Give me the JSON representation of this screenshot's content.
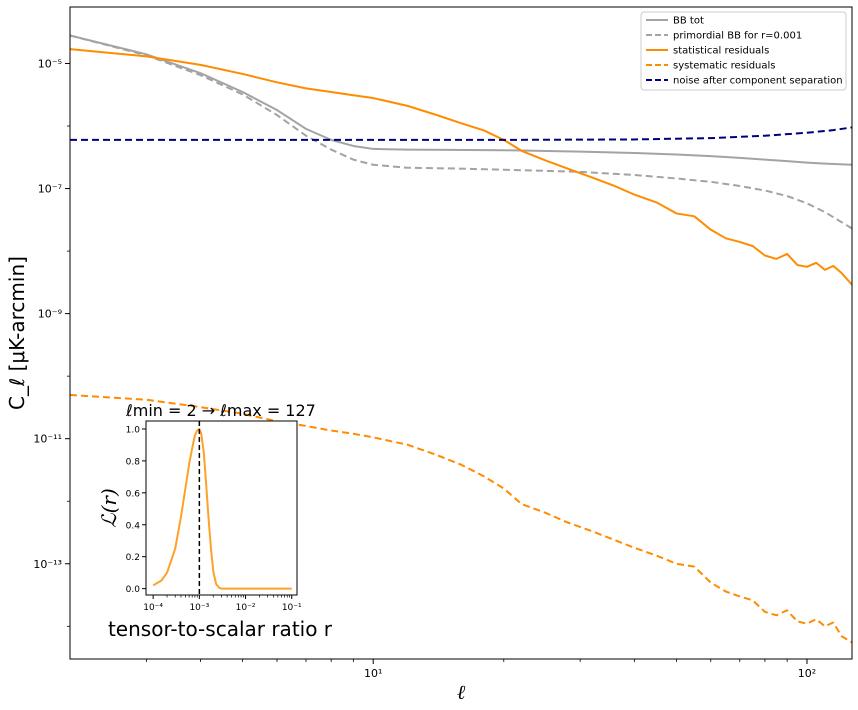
{
  "chart_data": [
    {
      "type": "line",
      "xlabel": "ℓ",
      "ylabel": "C_ℓ [μK-arcmin]",
      "x_scale": "log",
      "y_scale": "log",
      "xlim": [
        2,
        127
      ],
      "ylim": [
        3e-15,
        8e-05
      ],
      "x_ticks": [
        {
          "value": 10,
          "label": "10¹"
        },
        {
          "value": 100,
          "label": "10²"
        }
      ],
      "y_ticks": [
        {
          "value": 1e-05,
          "label": "10⁻⁵"
        },
        {
          "value": 1e-07,
          "label": "10⁻⁷"
        },
        {
          "value": 1e-09,
          "label": "10⁻⁹"
        },
        {
          "value": 1e-11,
          "label": "10⁻¹¹"
        },
        {
          "value": 1e-13,
          "label": "10⁻¹³"
        }
      ],
      "legend": "top-right",
      "grid": false,
      "series": [
        {
          "name": "BB tot",
          "color": "#a3a3a3",
          "dash": "solid",
          "points": [
            [
              2,
              2.8e-05
            ],
            [
              3,
              1.4e-05
            ],
            [
              4,
              7e-06
            ],
            [
              5,
              3.5e-06
            ],
            [
              6,
              1.8e-06
            ],
            [
              7,
              9e-07
            ],
            [
              8,
              6e-07
            ],
            [
              9,
              4.8e-07
            ],
            [
              10,
              4.3e-07
            ],
            [
              12,
              4.2e-07
            ],
            [
              15,
              4.15e-07
            ],
            [
              20,
              4.1e-07
            ],
            [
              30,
              3.9e-07
            ],
            [
              40,
              3.7e-07
            ],
            [
              50,
              3.5e-07
            ],
            [
              60,
              3.3e-07
            ],
            [
              70,
              3.1e-07
            ],
            [
              80,
              2.9e-07
            ],
            [
              90,
              2.75e-07
            ],
            [
              100,
              2.6e-07
            ],
            [
              110,
              2.5e-07
            ],
            [
              127,
              2.4e-07
            ]
          ]
        },
        {
          "name": "primordial BB for r=0.001",
          "color": "#a3a3a3",
          "dash": "dashed",
          "points": [
            [
              2,
              2.8e-05
            ],
            [
              3,
              1.35e-05
            ],
            [
              4,
              6.5e-06
            ],
            [
              5,
              3.2e-06
            ],
            [
              6,
              1.5e-06
            ],
            [
              7,
              7e-07
            ],
            [
              8,
              4.2e-07
            ],
            [
              9,
              2.9e-07
            ],
            [
              10,
              2.4e-07
            ],
            [
              12,
              2.15e-07
            ],
            [
              15,
              2.1e-07
            ],
            [
              20,
              2e-07
            ],
            [
              30,
              1.85e-07
            ],
            [
              40,
              1.65e-07
            ],
            [
              50,
              1.45e-07
            ],
            [
              60,
              1.28e-07
            ],
            [
              70,
              1.1e-07
            ],
            [
              80,
              9.3e-08
            ],
            [
              90,
              7.6e-08
            ],
            [
              100,
              5.8e-08
            ],
            [
              110,
              4.2e-08
            ],
            [
              127,
              2.3e-08
            ]
          ]
        },
        {
          "name": "statistical residuals",
          "color": "#ff8c00",
          "dash": "solid",
          "points": [
            [
              2,
              1.7e-05
            ],
            [
              3,
              1.3e-05
            ],
            [
              4,
              9.5e-06
            ],
            [
              5,
              6.8e-06
            ],
            [
              6,
              5e-06
            ],
            [
              7,
              4e-06
            ],
            [
              8,
              3.5e-06
            ],
            [
              9,
              3.1e-06
            ],
            [
              10,
              2.8e-06
            ],
            [
              12,
              2.1e-06
            ],
            [
              14,
              1.5e-06
            ],
            [
              16,
              1.1e-06
            ],
            [
              18,
              8.5e-07
            ],
            [
              20,
              6e-07
            ],
            [
              22,
              4e-07
            ],
            [
              25,
              2.8e-07
            ],
            [
              28,
              2.1e-07
            ],
            [
              32,
              1.5e-07
            ],
            [
              36,
              1.1e-07
            ],
            [
              40,
              8e-08
            ],
            [
              45,
              6e-08
            ],
            [
              50,
              4e-08
            ],
            [
              55,
              3.6e-08
            ],
            [
              60,
              2.2e-08
            ],
            [
              65,
              1.6e-08
            ],
            [
              70,
              1.4e-08
            ],
            [
              75,
              1.2e-08
            ],
            [
              80,
              8.5e-09
            ],
            [
              85,
              7.5e-09
            ],
            [
              90,
              9e-09
            ],
            [
              95,
              6e-09
            ],
            [
              100,
              5.6e-09
            ],
            [
              105,
              6.5e-09
            ],
            [
              110,
              5e-09
            ],
            [
              115,
              5.8e-09
            ],
            [
              120,
              4.5e-09
            ],
            [
              127,
              2.9e-09
            ]
          ]
        },
        {
          "name": "systematic residuals",
          "color": "#ff8c00",
          "dash": "dashed",
          "points": [
            [
              2,
              5e-11
            ],
            [
              3,
              4.2e-11
            ],
            [
              4,
              3.2e-11
            ],
            [
              5,
              2.5e-11
            ],
            [
              6,
              1.9e-11
            ],
            [
              7,
              1.6e-11
            ],
            [
              8,
              1.35e-11
            ],
            [
              9,
              1.2e-11
            ],
            [
              10,
              1.05e-11
            ],
            [
              12,
              8e-12
            ],
            [
              14,
              5.5e-12
            ],
            [
              16,
              3.8e-12
            ],
            [
              18,
              2.5e-12
            ],
            [
              20,
              1.6e-12
            ],
            [
              22,
              9e-13
            ],
            [
              25,
              6.5e-13
            ],
            [
              28,
              4.6e-13
            ],
            [
              32,
              3.3e-13
            ],
            [
              36,
              2.4e-13
            ],
            [
              40,
              1.8e-13
            ],
            [
              45,
              1.35e-13
            ],
            [
              50,
              1e-13
            ],
            [
              55,
              9e-14
            ],
            [
              60,
              5e-14
            ],
            [
              65,
              3.6e-14
            ],
            [
              70,
              3e-14
            ],
            [
              75,
              2.6e-14
            ],
            [
              80,
              1.7e-14
            ],
            [
              85,
              1.5e-14
            ],
            [
              90,
              1.8e-14
            ],
            [
              95,
              1.2e-14
            ],
            [
              100,
              1.1e-14
            ],
            [
              105,
              1.3e-14
            ],
            [
              110,
              1e-14
            ],
            [
              115,
              1.15e-14
            ],
            [
              120,
              7e-15
            ],
            [
              127,
              5.5e-15
            ]
          ]
        },
        {
          "name": "noise after component separation",
          "color": "#00007f",
          "dash": "dashed",
          "points": [
            [
              2,
              6e-07
            ],
            [
              10,
              6e-07
            ],
            [
              20,
              6e-07
            ],
            [
              40,
              6.1e-07
            ],
            [
              60,
              6.4e-07
            ],
            [
              80,
              7e-07
            ],
            [
              100,
              7.8e-07
            ],
            [
              115,
              8.6e-07
            ],
            [
              127,
              9.5e-07
            ]
          ]
        }
      ]
    },
    {
      "type": "line",
      "title": "ℓmin = 2 → ℓmax = 127",
      "xlabel": "tensor-to-scalar ratio r",
      "ylabel": "ℒ(r)",
      "x_scale": "log",
      "xlim": [
        7e-05,
        0.13
      ],
      "ylim": [
        -0.04,
        1.05
      ],
      "x_ticks": [
        {
          "value": 0.0001,
          "label": "10⁻⁴"
        },
        {
          "value": 0.001,
          "label": "10⁻³"
        },
        {
          "value": 0.01,
          "label": "10⁻²"
        },
        {
          "value": 0.1,
          "label": "10⁻¹"
        }
      ],
      "y_ticks": [
        0.0,
        0.2,
        0.4,
        0.6,
        0.8,
        1.0
      ],
      "vline": 0.001,
      "series": [
        {
          "color": "#ffa028",
          "points": [
            [
              0.0001,
              0.02
            ],
            [
              0.00015,
              0.05
            ],
            [
              0.0002,
              0.1
            ],
            [
              0.0003,
              0.25
            ],
            [
              0.0004,
              0.45
            ],
            [
              0.0005,
              0.63
            ],
            [
              0.0006,
              0.78
            ],
            [
              0.0007,
              0.88
            ],
            [
              0.0008,
              0.96
            ],
            [
              0.0009,
              0.99
            ],
            [
              0.001,
              1.0
            ],
            [
              0.0011,
              0.97
            ],
            [
              0.00125,
              0.85
            ],
            [
              0.0014,
              0.66
            ],
            [
              0.0016,
              0.42
            ],
            [
              0.0018,
              0.24
            ],
            [
              0.002,
              0.11
            ],
            [
              0.0023,
              0.03
            ],
            [
              0.0027,
              0.005
            ],
            [
              0.003,
              0.0
            ],
            [
              0.005,
              0.0
            ],
            [
              0.01,
              0.0
            ],
            [
              0.03,
              0.0
            ],
            [
              0.1,
              0.0
            ]
          ]
        }
      ]
    }
  ]
}
